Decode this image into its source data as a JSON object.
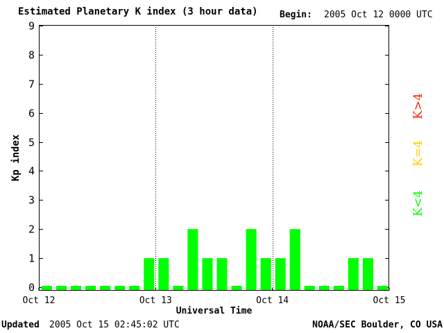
{
  "title": "Estimated Planetary K index (3 hour data)",
  "begin": {
    "label": "Begin:",
    "value": "2005 Oct 12 0000 UTC"
  },
  "updated": {
    "label": "Updated",
    "value": "2005 Oct 15 02:45:02 UTC"
  },
  "credit": "NOAA/SEC Boulder, CO USA",
  "legend": [
    {
      "text": "K<4",
      "color": "#00ff00"
    },
    {
      "text": "K=4",
      "color": "#ffcc00"
    },
    {
      "text": "K>4",
      "color": "#ff2200"
    }
  ],
  "colors": {
    "bar": "#00ff00",
    "axis": "#000000"
  },
  "chart_data": {
    "type": "bar",
    "title": "Estimated Planetary K index (3 hour data)",
    "xlabel": "Universal Time",
    "ylabel": "Kp index",
    "ylim": [
      0,
      9
    ],
    "y_ticks": [
      "0",
      "1",
      "2",
      "3",
      "4",
      "5",
      "6",
      "7",
      "8",
      "9"
    ],
    "x_ticks": [
      "Oct 12",
      "Oct 13",
      "Oct 14",
      "Oct 15"
    ],
    "interval_hours": 3,
    "series": [
      {
        "values": [
          0,
          0,
          0,
          0,
          0,
          0,
          0,
          1,
          1,
          0,
          2,
          1,
          1,
          0,
          2,
          1,
          1,
          2,
          0,
          0,
          0,
          1,
          1,
          0
        ]
      }
    ]
  }
}
